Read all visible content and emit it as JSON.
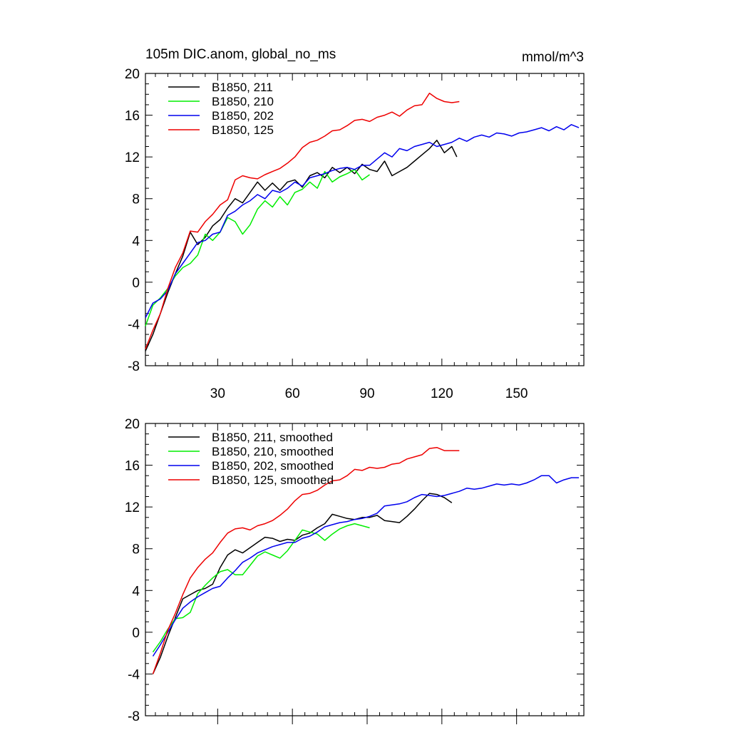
{
  "chart_data": [
    {
      "type": "line",
      "title": "105m DIC.anom, global_no_ms",
      "units": "mmol/m^3",
      "xlabel": "",
      "ylabel": "",
      "xlim": [
        1,
        177
      ],
      "ylim": [
        -8,
        20
      ],
      "xticks": [
        "30",
        "60",
        "90",
        "120",
        "150"
      ],
      "yticks": [
        "-8",
        "-4",
        "0",
        "4",
        "8",
        "12",
        "16",
        "20"
      ],
      "legend_position": "top-left",
      "series": [
        {
          "name": "B1850, 211",
          "color": "#000000",
          "x": [
            1,
            4,
            7,
            10,
            13,
            16,
            19,
            22,
            25,
            28,
            31,
            34,
            37,
            40,
            43,
            46,
            49,
            52,
            55,
            58,
            61,
            64,
            67,
            70,
            73,
            76,
            79,
            82,
            85,
            88,
            91,
            94,
            97,
            100,
            103,
            106,
            109,
            112,
            115,
            118,
            121,
            124,
            126
          ],
          "values": [
            -6.6,
            -5.0,
            -3.0,
            -1.0,
            0.8,
            2.5,
            4.8,
            3.6,
            4.3,
            5.4,
            6.0,
            7.1,
            8.0,
            7.6,
            8.6,
            9.6,
            8.8,
            9.5,
            8.8,
            9.6,
            9.8,
            9.1,
            10.2,
            10.5,
            10.0,
            11.0,
            10.5,
            11.0,
            10.4,
            11.3,
            10.8,
            10.6,
            11.6,
            10.2,
            10.6,
            11.0,
            11.6,
            12.2,
            12.8,
            13.6,
            12.4,
            13.0,
            12.0
          ]
        },
        {
          "name": "B1850, 210",
          "color": "#00ee00",
          "x": [
            1,
            4,
            7,
            10,
            13,
            16,
            19,
            22,
            25,
            28,
            31,
            34,
            37,
            40,
            43,
            46,
            49,
            52,
            55,
            58,
            61,
            64,
            67,
            70,
            73,
            76,
            79,
            82,
            85,
            88,
            91
          ],
          "values": [
            -4.2,
            -2.2,
            -1.5,
            -0.6,
            0.6,
            1.4,
            1.8,
            2.6,
            4.6,
            4.0,
            4.8,
            6.2,
            5.8,
            4.6,
            5.5,
            7.0,
            7.8,
            7.2,
            8.2,
            7.4,
            8.6,
            8.9,
            9.6,
            9.0,
            10.6,
            9.6,
            10.1,
            10.4,
            10.8,
            9.8,
            10.3
          ]
        },
        {
          "name": "B1850, 202",
          "color": "#0000ee",
          "x": [
            1,
            4,
            7,
            10,
            13,
            16,
            19,
            22,
            25,
            28,
            31,
            34,
            37,
            40,
            43,
            46,
            49,
            52,
            55,
            58,
            61,
            64,
            67,
            70,
            73,
            76,
            79,
            82,
            85,
            88,
            91,
            94,
            97,
            100,
            103,
            106,
            109,
            112,
            115,
            118,
            121,
            124,
            127,
            130,
            133,
            136,
            139,
            142,
            145,
            148,
            151,
            154,
            157,
            160,
            163,
            166,
            169,
            172,
            175
          ],
          "values": [
            -3.4,
            -2.0,
            -1.6,
            -0.8,
            0.8,
            1.8,
            2.8,
            3.8,
            4.0,
            4.6,
            4.8,
            6.4,
            6.8,
            7.4,
            7.8,
            8.4,
            8.0,
            8.8,
            8.6,
            9.0,
            9.6,
            9.2,
            10.0,
            10.2,
            10.4,
            10.7,
            10.9,
            11.0,
            10.8,
            11.2,
            11.2,
            11.8,
            12.4,
            12.0,
            12.8,
            12.6,
            13.0,
            13.2,
            13.4,
            13.0,
            13.2,
            13.4,
            13.8,
            13.5,
            13.9,
            14.1,
            13.9,
            14.3,
            14.2,
            14.0,
            14.3,
            14.4,
            14.6,
            14.8,
            14.5,
            14.9,
            14.6,
            15.1,
            14.8
          ]
        },
        {
          "name": "B1850, 125",
          "color": "#ee0000",
          "x": [
            1,
            4,
            7,
            10,
            13,
            16,
            19,
            22,
            25,
            28,
            31,
            34,
            37,
            40,
            43,
            46,
            49,
            52,
            55,
            58,
            61,
            64,
            67,
            70,
            73,
            76,
            79,
            82,
            85,
            88,
            91,
            94,
            97,
            100,
            103,
            106,
            109,
            112,
            115,
            118,
            121,
            124,
            127
          ],
          "values": [
            -6.4,
            -4.6,
            -3.0,
            -0.6,
            1.4,
            2.8,
            4.9,
            4.8,
            5.8,
            6.5,
            7.4,
            7.9,
            9.8,
            10.2,
            10.0,
            9.9,
            10.3,
            10.6,
            10.9,
            11.4,
            12.0,
            12.9,
            13.4,
            13.6,
            14.0,
            14.5,
            14.6,
            15.0,
            15.5,
            15.6,
            15.4,
            15.8,
            16.0,
            16.3,
            15.9,
            16.5,
            16.9,
            17.0,
            18.1,
            17.6,
            17.3,
            17.2,
            17.3
          ]
        }
      ]
    },
    {
      "type": "line",
      "title": "",
      "xlabel": "",
      "ylabel": "",
      "xlim": [
        1,
        177
      ],
      "ylim": [
        -8,
        20
      ],
      "xticks": [],
      "yticks": [
        "-8",
        "-4",
        "0",
        "4",
        "8",
        "12",
        "16",
        "20"
      ],
      "legend_position": "top-left",
      "series": [
        {
          "name": "B1850, 211, smoothed",
          "color": "#000000",
          "x": [
            4,
            7,
            10,
            13,
            16,
            19,
            22,
            25,
            28,
            31,
            34,
            37,
            40,
            43,
            46,
            49,
            52,
            55,
            58,
            61,
            64,
            67,
            70,
            73,
            76,
            79,
            82,
            85,
            88,
            91,
            94,
            97,
            100,
            103,
            106,
            109,
            112,
            115,
            118,
            121,
            124
          ],
          "values": [
            -4.0,
            -2.4,
            -0.4,
            1.4,
            3.2,
            3.6,
            4.0,
            4.2,
            4.6,
            6.2,
            7.4,
            7.9,
            7.6,
            8.1,
            8.6,
            9.1,
            9.0,
            8.7,
            8.9,
            8.8,
            9.3,
            9.5,
            10.0,
            10.4,
            11.3,
            11.1,
            10.9,
            10.8,
            11.0,
            11.0,
            11.2,
            10.7,
            10.6,
            10.5,
            11.1,
            11.8,
            12.6,
            13.3,
            13.2,
            12.9,
            12.4
          ]
        },
        {
          "name": "B1850, 210, smoothed",
          "color": "#00ee00",
          "x": [
            4,
            7,
            10,
            13,
            16,
            19,
            22,
            25,
            28,
            31,
            34,
            37,
            40,
            43,
            46,
            49,
            52,
            55,
            58,
            61,
            64,
            67,
            70,
            73,
            76,
            79,
            82,
            85,
            88,
            91
          ],
          "values": [
            -1.9,
            -0.9,
            0.3,
            1.3,
            1.4,
            1.9,
            3.7,
            4.5,
            5.2,
            5.8,
            6.0,
            5.5,
            5.5,
            6.4,
            7.3,
            7.7,
            7.4,
            7.1,
            7.8,
            8.8,
            9.8,
            9.6,
            9.4,
            8.8,
            9.4,
            9.9,
            10.2,
            10.4,
            10.2,
            10.0
          ]
        },
        {
          "name": "B1850, 202, smoothed",
          "color": "#0000ee",
          "x": [
            4,
            7,
            10,
            13,
            16,
            19,
            22,
            25,
            28,
            31,
            34,
            37,
            40,
            43,
            46,
            49,
            52,
            55,
            58,
            61,
            64,
            67,
            70,
            73,
            76,
            79,
            82,
            85,
            88,
            91,
            94,
            97,
            100,
            103,
            106,
            109,
            112,
            115,
            118,
            121,
            124,
            127,
            130,
            133,
            136,
            139,
            142,
            145,
            148,
            151,
            154,
            157,
            160,
            163,
            166,
            169,
            172,
            175
          ],
          "values": [
            -2.3,
            -1.2,
            0.0,
            1.2,
            2.3,
            2.9,
            3.4,
            3.8,
            4.2,
            4.4,
            5.2,
            5.9,
            6.7,
            7.1,
            7.6,
            7.9,
            8.2,
            8.4,
            8.6,
            8.6,
            9.0,
            9.2,
            9.6,
            10.1,
            10.3,
            10.5,
            10.6,
            10.8,
            10.9,
            11.1,
            11.4,
            12.1,
            12.2,
            12.3,
            12.5,
            12.9,
            13.2,
            13.1,
            13.0,
            13.1,
            13.3,
            13.5,
            13.8,
            13.7,
            13.8,
            14.0,
            14.2,
            14.1,
            14.2,
            14.1,
            14.3,
            14.6,
            15.0,
            15.0,
            14.3,
            14.6,
            14.8,
            14.8
          ]
        },
        {
          "name": "B1850, 125, smoothed",
          "color": "#ee0000",
          "x": [
            4,
            7,
            10,
            13,
            16,
            19,
            22,
            25,
            28,
            31,
            34,
            37,
            40,
            43,
            46,
            49,
            52,
            55,
            58,
            61,
            64,
            67,
            70,
            73,
            76,
            79,
            82,
            85,
            88,
            91,
            94,
            97,
            100,
            103,
            106,
            109,
            112,
            115,
            118,
            121,
            124,
            127
          ],
          "values": [
            -4.0,
            -2.0,
            0.2,
            1.8,
            3.6,
            5.2,
            6.2,
            7.0,
            7.6,
            8.6,
            9.5,
            9.9,
            10.0,
            9.8,
            10.2,
            10.4,
            10.7,
            11.2,
            11.8,
            12.6,
            13.2,
            13.3,
            13.6,
            14.1,
            14.5,
            14.6,
            15.0,
            15.6,
            15.5,
            15.8,
            15.7,
            15.8,
            16.1,
            16.2,
            16.6,
            16.8,
            17.0,
            17.6,
            17.7,
            17.4,
            17.4,
            17.4
          ]
        }
      ]
    }
  ]
}
